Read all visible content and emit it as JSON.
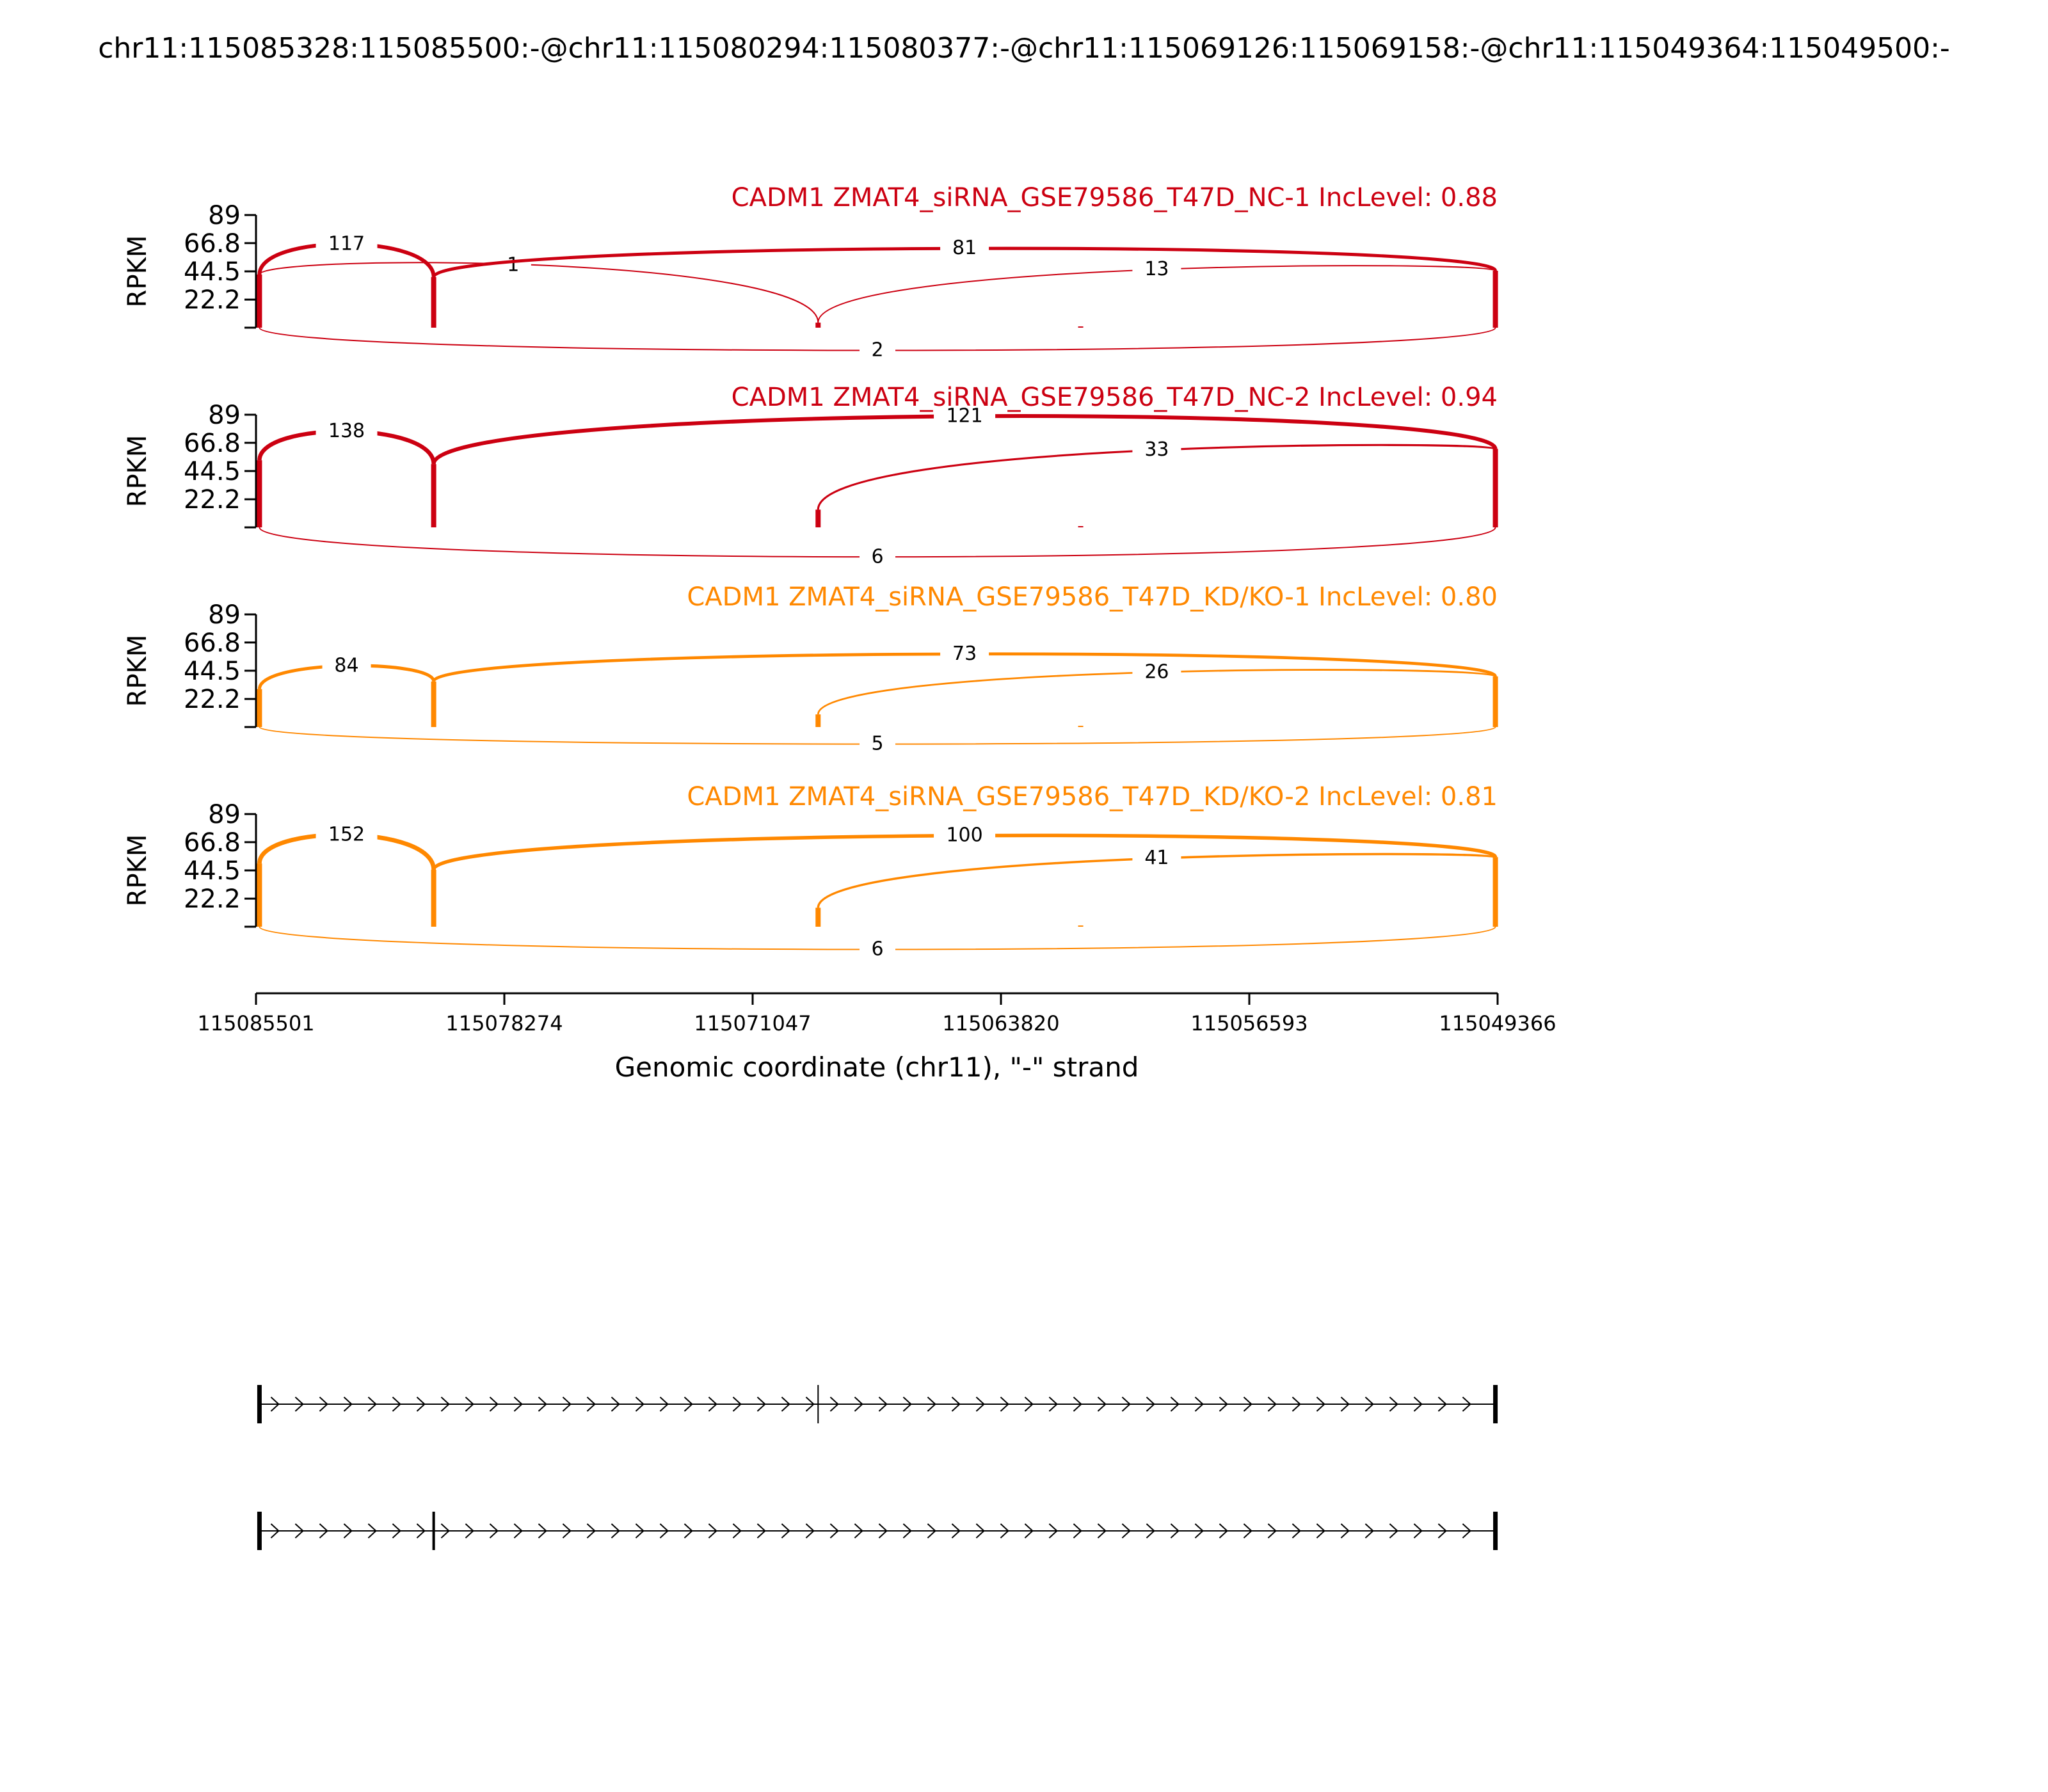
{
  "title": "chr11:115085328:115085500:-@chr11:115080294:115080377:-@chr11:115069126:115069158:-@chr11:115049364:115049500:-",
  "chart_data": {
    "type": "sashimi",
    "xlabel": "Genomic coordinate (chr11), \"-\" strand",
    "ylabel": "RPKM",
    "xlim": [
      115085501,
      115049366
    ],
    "x_tick_values": [
      115085501,
      115078274,
      115071047,
      115063820,
      115056593,
      115049366
    ],
    "x_tick_labels": [
      "115085501",
      "115078274",
      "115071047",
      "115063820",
      "115056593",
      "115049366"
    ],
    "ylim": [
      0,
      89
    ],
    "y_tick_labels": [
      "89",
      "66.8",
      "44.5",
      "22.2"
    ],
    "exon_coords": {
      "e1": 115085400,
      "e2": 115080330,
      "e3": 115069142,
      "e4": 115049430,
      "e5": 115061500
    },
    "panels": [
      {
        "title": "CADM1 ZMAT4_siRNA_GSE79586_T47D_NC-1 IncLevel: 0.88",
        "color": "#cc0011",
        "coverage": {
          "e1": 42,
          "e2": 40,
          "e3": 4,
          "e4": 45,
          "e5": 1
        },
        "junctions": [
          {
            "label": "117",
            "from": "e1",
            "to": "e2",
            "above": true,
            "height": 66
          },
          {
            "label": "1",
            "from": "e1",
            "to": "e3",
            "above": true,
            "height": 54
          },
          {
            "label": "81",
            "from": "e2",
            "to": "e4",
            "above": true,
            "height": 63
          },
          {
            "label": "13",
            "from": "e3",
            "to": "e4",
            "above": true,
            "height": 51
          },
          {
            "label": "2",
            "from": "e1",
            "to": "e4",
            "above": false,
            "height": 20
          }
        ]
      },
      {
        "title": "CADM1 ZMAT4_siRNA_GSE79586_T47D_NC-2 IncLevel: 0.94",
        "color": "#cc0011",
        "coverage": {
          "e1": 53,
          "e2": 50,
          "e3": 14,
          "e4": 62,
          "e5": 1
        },
        "junctions": [
          {
            "label": "138",
            "from": "e1",
            "to": "e2",
            "above": true,
            "height": 76
          },
          {
            "label": "121",
            "from": "e2",
            "to": "e4",
            "above": true,
            "height": 89
          },
          {
            "label": "33",
            "from": "e3",
            "to": "e4",
            "above": true,
            "height": 67
          },
          {
            "label": "6",
            "from": "e1",
            "to": "e4",
            "above": false,
            "height": 26
          }
        ]
      },
      {
        "title": "CADM1 ZMAT4_siRNA_GSE79586_T47D_KD/KO-1 IncLevel: 0.80",
        "color": "#ff8800",
        "coverage": {
          "e1": 30,
          "e2": 36,
          "e3": 10,
          "e4": 40,
          "e5": 1
        },
        "junctions": [
          {
            "label": "84",
            "from": "e1",
            "to": "e2",
            "above": true,
            "height": 49
          },
          {
            "label": "73",
            "from": "e2",
            "to": "e4",
            "above": true,
            "height": 58
          },
          {
            "label": "26",
            "from": "e3",
            "to": "e4",
            "above": true,
            "height": 47
          },
          {
            "label": "5",
            "from": "e1",
            "to": "e4",
            "above": false,
            "height": 15
          }
        ]
      },
      {
        "title": "CADM1 ZMAT4_siRNA_GSE79586_T47D_KD/KO-2 IncLevel: 0.81",
        "color": "#ff8800",
        "coverage": {
          "e1": 50,
          "e2": 45,
          "e3": 15,
          "e4": 55,
          "e5": 1
        },
        "junctions": [
          {
            "label": "152",
            "from": "e1",
            "to": "e2",
            "above": true,
            "height": 73
          },
          {
            "label": "100",
            "from": "e2",
            "to": "e4",
            "above": true,
            "height": 73
          },
          {
            "label": "41",
            "from": "e3",
            "to": "e4",
            "above": true,
            "height": 59
          },
          {
            "label": "6",
            "from": "e1",
            "to": "e4",
            "above": false,
            "height": 20
          }
        ]
      }
    ],
    "isoforms": [
      {
        "exons": [
          "e1",
          "e3",
          "e4"
        ]
      },
      {
        "exons": [
          "e1",
          "e2",
          "e4"
        ]
      }
    ]
  }
}
